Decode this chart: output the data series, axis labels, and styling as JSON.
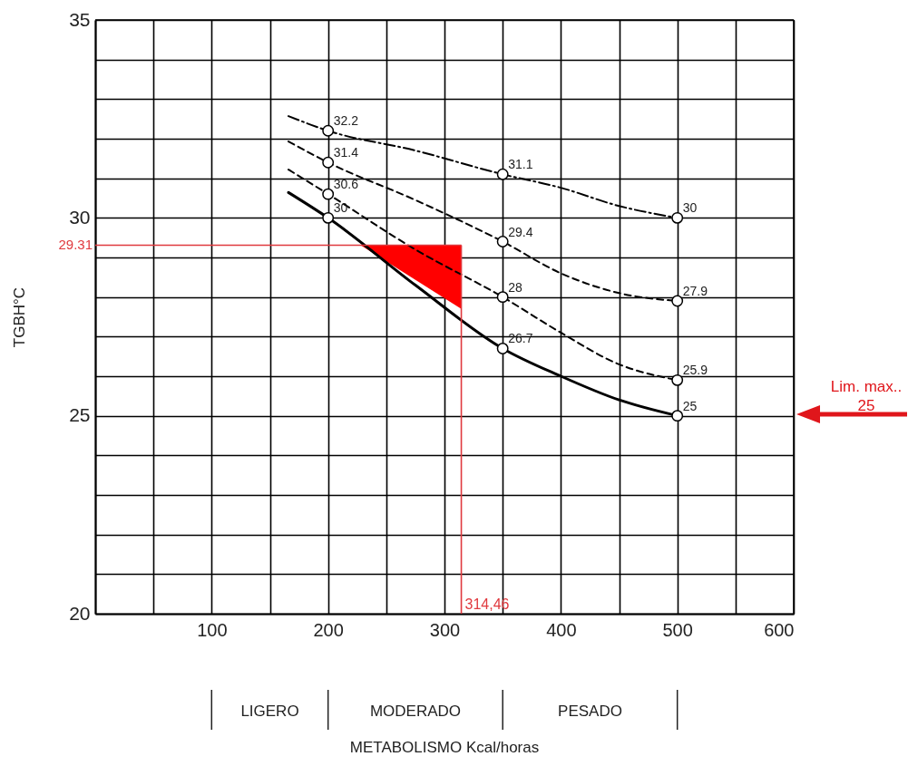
{
  "chart_data": {
    "type": "line",
    "xlabel": null,
    "ylabel": "TGBH°C",
    "xlim": [
      0,
      600
    ],
    "ylim": [
      20,
      35
    ],
    "xticks": [
      {
        "value": 0,
        "label": null
      },
      {
        "value": 50,
        "label": null
      },
      100,
      {
        "value": 150,
        "label": null
      },
      200,
      {
        "value": 250,
        "label": null
      },
      300,
      {
        "value": 350,
        "label": null
      },
      400,
      {
        "value": 450,
        "label": null
      },
      500,
      {
        "value": 550,
        "label": null
      },
      600
    ],
    "yticks": [
      20,
      {
        "value": 21,
        "label": null
      },
      {
        "value": 22,
        "label": null
      },
      {
        "value": 23,
        "label": null
      },
      {
        "value": 24,
        "label": null
      },
      25,
      {
        "value": 26,
        "label": null
      },
      {
        "value": 27,
        "label": null
      },
      {
        "value": 28,
        "label": null
      },
      {
        "value": 29,
        "label": null
      },
      30,
      {
        "value": 31,
        "label": null
      },
      {
        "value": 32,
        "label": null
      },
      {
        "value": 33,
        "label": null
      },
      {
        "value": 34,
        "label": null
      },
      35
    ],
    "grid": true,
    "series": [
      {
        "line_style": "dotted",
        "color": "#000000",
        "x": [
          166,
          200,
          275,
          350,
          400,
          450,
          500
        ],
        "values": [
          32.57,
          32.2,
          31.7,
          31.1,
          30.76,
          30.3,
          30
        ]
      },
      {
        "line_style": "dashed",
        "color": "#000000",
        "x": [
          166,
          200,
          275,
          350,
          400,
          450,
          500
        ],
        "values": [
          31.93,
          31.4,
          30.45,
          29.4,
          28.6,
          28.1,
          27.9
        ]
      },
      {
        "line_style": "dashed",
        "color": "#000000",
        "x": [
          166,
          200,
          275,
          350,
          400,
          450,
          500
        ],
        "values": [
          31.22,
          30.6,
          29.2,
          28,
          27.1,
          26.3,
          25.9
        ]
      },
      {
        "line_style": "solid",
        "color": "#000000",
        "x": [
          166,
          200,
          275,
          350,
          400,
          450,
          500
        ],
        "values": [
          30.64,
          30,
          28.3,
          26.7,
          26,
          25.4,
          25
        ]
      },
      {
        "type": "area",
        "color": "#ff0000",
        "x": [
          228,
          314.46
        ],
        "values": [
          29.31,
          27.7
        ]
      },
      {
        "type": "scatter",
        "color": "#000000",
        "marker": "circle",
        "data_labels": true,
        "x": [
          200,
          200,
          200,
          200,
          350,
          350,
          350,
          350,
          500,
          500,
          500,
          500
        ],
        "values": [
          32.2,
          31.4,
          30.6,
          30,
          31.1,
          29.4,
          28,
          26.7,
          30,
          27.9,
          25.9,
          25
        ]
      }
    ],
    "ref_lines": [
      {
        "axis": "y",
        "value": 29.31,
        "label": "29.31",
        "color": "#e0393e"
      },
      {
        "axis": "x",
        "value": 314.46,
        "label": "314,46",
        "color": "#e0393e"
      }
    ],
    "annotations": [
      "LIGERO",
      "MODERADO",
      "PESADO",
      "METABOLISMO Kcal/horas",
      "Lim. max..\n25"
    ]
  }
}
